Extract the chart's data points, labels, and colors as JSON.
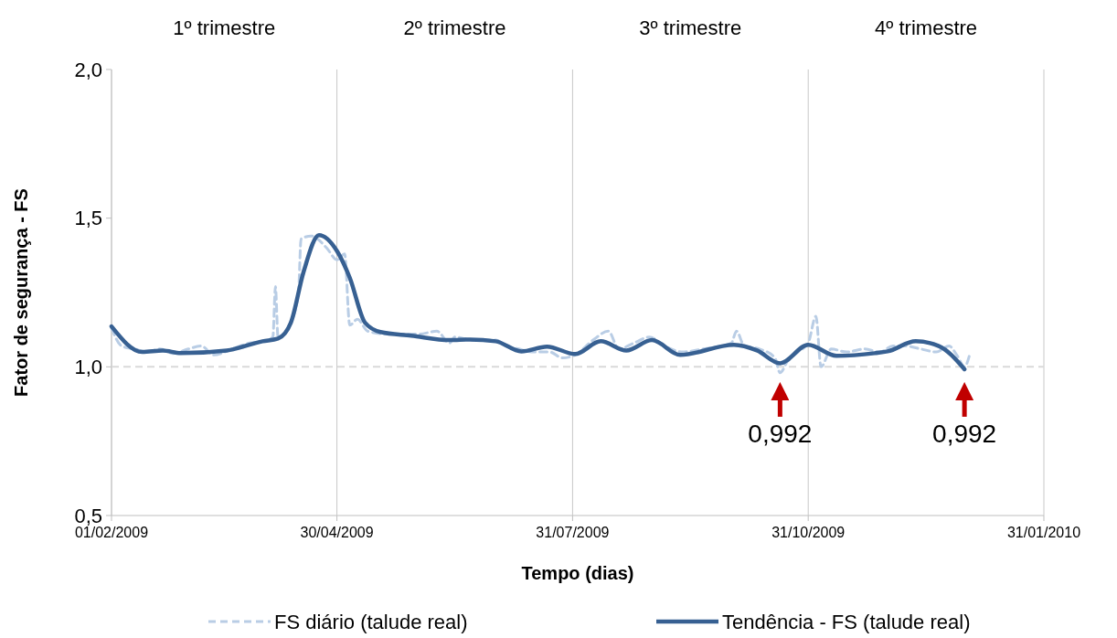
{
  "chart_data": {
    "type": "line",
    "xlabel": "Tempo (dias)",
    "ylabel": "Fator de segurança - FS",
    "xlim": [
      "2009-02-01",
      "2010-01-31"
    ],
    "xticks": [
      {
        "value": "2009-02-01",
        "label": "01/02/2009"
      },
      {
        "value": "2009-04-30",
        "label": "30/04/2009"
      },
      {
        "value": "2009-07-31",
        "label": "31/07/2009"
      },
      {
        "value": "2009-10-31",
        "label": "31/10/2009"
      },
      {
        "value": "2010-01-31",
        "label": "31/01/2010"
      }
    ],
    "ylim": [
      0.5,
      2.0
    ],
    "yticks": [
      {
        "value": 0.5,
        "label": "0,5"
      },
      {
        "value": 1.0,
        "label": "1,0"
      },
      {
        "value": 1.5,
        "label": "1,5"
      },
      {
        "value": 2.0,
        "label": "2,0"
      }
    ],
    "grid": "x",
    "legend": "bottom",
    "ref_lines": [
      {
        "axis": "y",
        "value": 1.0,
        "color": "#d9d9d9",
        "line_style": "dashed"
      }
    ],
    "annotations": [
      "1º trimestre",
      "2º trimestre",
      "3º trimestre",
      "4º trimestre",
      {
        "text": "0,992",
        "x": "2009-10-20",
        "y": 0.992
      },
      {
        "text": "0,992",
        "x": "2009-12-31",
        "y": 0.992
      }
    ],
    "series": [
      {
        "name": "FS diário (talude real)",
        "color": "#b9cde5",
        "line_style": "dashed",
        "x": [
          "2009-02-01",
          "2009-02-05",
          "2009-02-10",
          "2009-02-15",
          "2009-02-20",
          "2009-02-25",
          "2009-03-03",
          "2009-03-08",
          "2009-03-13",
          "2009-03-20",
          "2009-03-27",
          "2009-04-03",
          "2009-04-05",
          "2009-04-06",
          "2009-04-07",
          "2009-04-12",
          "2009-04-15",
          "2009-04-16",
          "2009-04-20",
          "2009-04-26",
          "2009-04-30",
          "2009-05-03",
          "2009-05-05",
          "2009-05-08",
          "2009-05-12",
          "2009-05-20",
          "2009-06-01",
          "2009-06-08",
          "2009-06-13",
          "2009-06-15",
          "2009-06-22",
          "2009-07-01",
          "2009-07-05",
          "2009-07-10",
          "2009-07-15",
          "2009-07-22",
          "2009-07-27",
          "2009-08-01",
          "2009-08-08",
          "2009-08-14",
          "2009-08-18",
          "2009-08-24",
          "2009-08-30",
          "2009-09-05",
          "2009-09-12",
          "2009-09-20",
          "2009-09-27",
          "2009-10-01",
          "2009-10-03",
          "2009-10-06",
          "2009-10-12",
          "2009-10-18",
          "2009-10-20",
          "2009-10-23",
          "2009-10-27",
          "2009-10-31",
          "2009-11-03",
          "2009-11-05",
          "2009-11-09",
          "2009-11-15",
          "2009-11-22",
          "2009-11-28",
          "2009-12-03",
          "2009-12-08",
          "2009-12-14",
          "2009-12-20",
          "2009-12-25",
          "2009-12-28",
          "2009-12-31",
          "2010-01-02"
        ],
        "values": [
          1.13,
          1.07,
          1.06,
          1.05,
          1.06,
          1.045,
          1.06,
          1.07,
          1.04,
          1.06,
          1.08,
          1.09,
          1.1,
          1.27,
          1.1,
          1.15,
          1.25,
          1.43,
          1.44,
          1.4,
          1.36,
          1.38,
          1.14,
          1.16,
          1.12,
          1.11,
          1.11,
          1.12,
          1.08,
          1.1,
          1.09,
          1.09,
          1.07,
          1.06,
          1.05,
          1.05,
          1.03,
          1.04,
          1.09,
          1.12,
          1.06,
          1.08,
          1.1,
          1.07,
          1.05,
          1.06,
          1.07,
          1.08,
          1.12,
          1.07,
          1.06,
          1.03,
          0.98,
          1.02,
          1.05,
          1.08,
          1.17,
          1.0,
          1.06,
          1.05,
          1.06,
          1.05,
          1.07,
          1.07,
          1.06,
          1.05,
          1.07,
          1.04,
          1.0,
          1.04
        ]
      },
      {
        "name": "Tendência - FS (talude real)",
        "color": "#376092",
        "line_style": "solid",
        "x": [
          "2009-02-01",
          "2009-02-13",
          "2009-02-21",
          "2009-02-28",
          "2009-03-18",
          "2009-04-01",
          "2009-04-07",
          "2009-04-12",
          "2009-04-17",
          "2009-04-23",
          "2009-04-30",
          "2009-05-05",
          "2009-05-11",
          "2009-05-17",
          "2009-05-29",
          "2009-06-13",
          "2009-06-21",
          "2009-07-01",
          "2009-07-11",
          "2009-07-21",
          "2009-08-01",
          "2009-08-11",
          "2009-08-21",
          "2009-08-31",
          "2009-09-11",
          "2009-10-02",
          "2009-10-11",
          "2009-10-20",
          "2009-10-31",
          "2009-11-11",
          "2009-11-26",
          "2009-12-01",
          "2009-12-12",
          "2009-12-21",
          "2009-12-31"
        ],
        "values": [
          1.136,
          1.05,
          1.055,
          1.046,
          1.055,
          1.086,
          1.095,
          1.148,
          1.32,
          1.443,
          1.39,
          1.3,
          1.148,
          1.117,
          1.105,
          1.09,
          1.092,
          1.086,
          1.052,
          1.068,
          1.043,
          1.086,
          1.055,
          1.09,
          1.04,
          1.074,
          1.055,
          1.012,
          1.074,
          1.037,
          1.046,
          1.052,
          1.086,
          1.07,
          0.992
        ]
      }
    ]
  }
}
